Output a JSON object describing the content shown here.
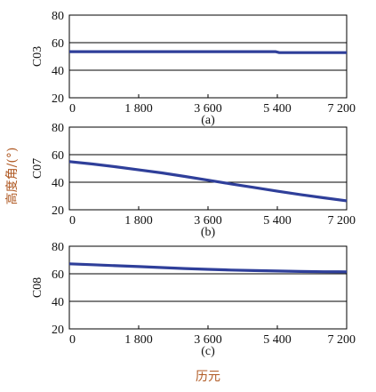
{
  "shared_ylabel": "高度角/(°)",
  "xlabel": "历元",
  "colors": {
    "series": "#2f3f9a",
    "grid": "#000000",
    "label": "#b05a24"
  },
  "chart_data": [
    {
      "type": "line",
      "panel_label": "(a)",
      "ylabel": "C03",
      "xlim": [
        0,
        7200
      ],
      "ylim": [
        20,
        80
      ],
      "xticks": [
        0,
        1800,
        3600,
        5400,
        7200
      ],
      "xtick_labels": [
        "0",
        "1 800",
        "3 600",
        "5 400",
        "7 200"
      ],
      "yticks": [
        20,
        40,
        60,
        80
      ],
      "ytick_labels": [
        "20",
        "40",
        "60",
        "80"
      ],
      "grid": true,
      "series": [
        {
          "x": [
            0,
            5350,
            5450,
            7200
          ],
          "y": [
            53.5,
            53.5,
            52.8,
            52.8
          ]
        }
      ]
    },
    {
      "type": "line",
      "panel_label": "(b)",
      "ylabel": "C07",
      "xlim": [
        0,
        7200
      ],
      "ylim": [
        20,
        80
      ],
      "xticks": [
        0,
        1800,
        3600,
        5400,
        7200
      ],
      "xtick_labels": [
        "0",
        "1 800",
        "3 600",
        "5 400",
        "7 200"
      ],
      "yticks": [
        20,
        40,
        60,
        80
      ],
      "ytick_labels": [
        "20",
        "40",
        "60",
        "80"
      ],
      "grid": true,
      "series": [
        {
          "x": [
            0,
            600,
            1200,
            1800,
            2400,
            3000,
            3600,
            4200,
            4800,
            5400,
            6000,
            6600,
            7200
          ],
          "y": [
            55,
            53.2,
            51.2,
            49,
            46.8,
            44.2,
            41.5,
            38.8,
            36.2,
            33.5,
            31,
            28.7,
            26.5
          ]
        }
      ]
    },
    {
      "type": "line",
      "panel_label": "(c)",
      "ylabel": "C08",
      "xlim": [
        0,
        7200
      ],
      "ylim": [
        20,
        80
      ],
      "xticks": [
        0,
        1800,
        3600,
        5400,
        7200
      ],
      "xtick_labels": [
        "0",
        "1 800",
        "3 600",
        "5 400",
        "7 200"
      ],
      "yticks": [
        20,
        40,
        60,
        80
      ],
      "ytick_labels": [
        "20",
        "40",
        "60",
        "80"
      ],
      "grid": true,
      "series": [
        {
          "x": [
            0,
            600,
            1200,
            1800,
            2400,
            3000,
            3600,
            4200,
            4800,
            5400,
            6000,
            6600,
            7200
          ],
          "y": [
            67.2,
            66.6,
            65.9,
            65.2,
            64.5,
            63.8,
            63.2,
            62.7,
            62.3,
            62,
            61.7,
            61.5,
            61.4
          ]
        }
      ]
    }
  ]
}
